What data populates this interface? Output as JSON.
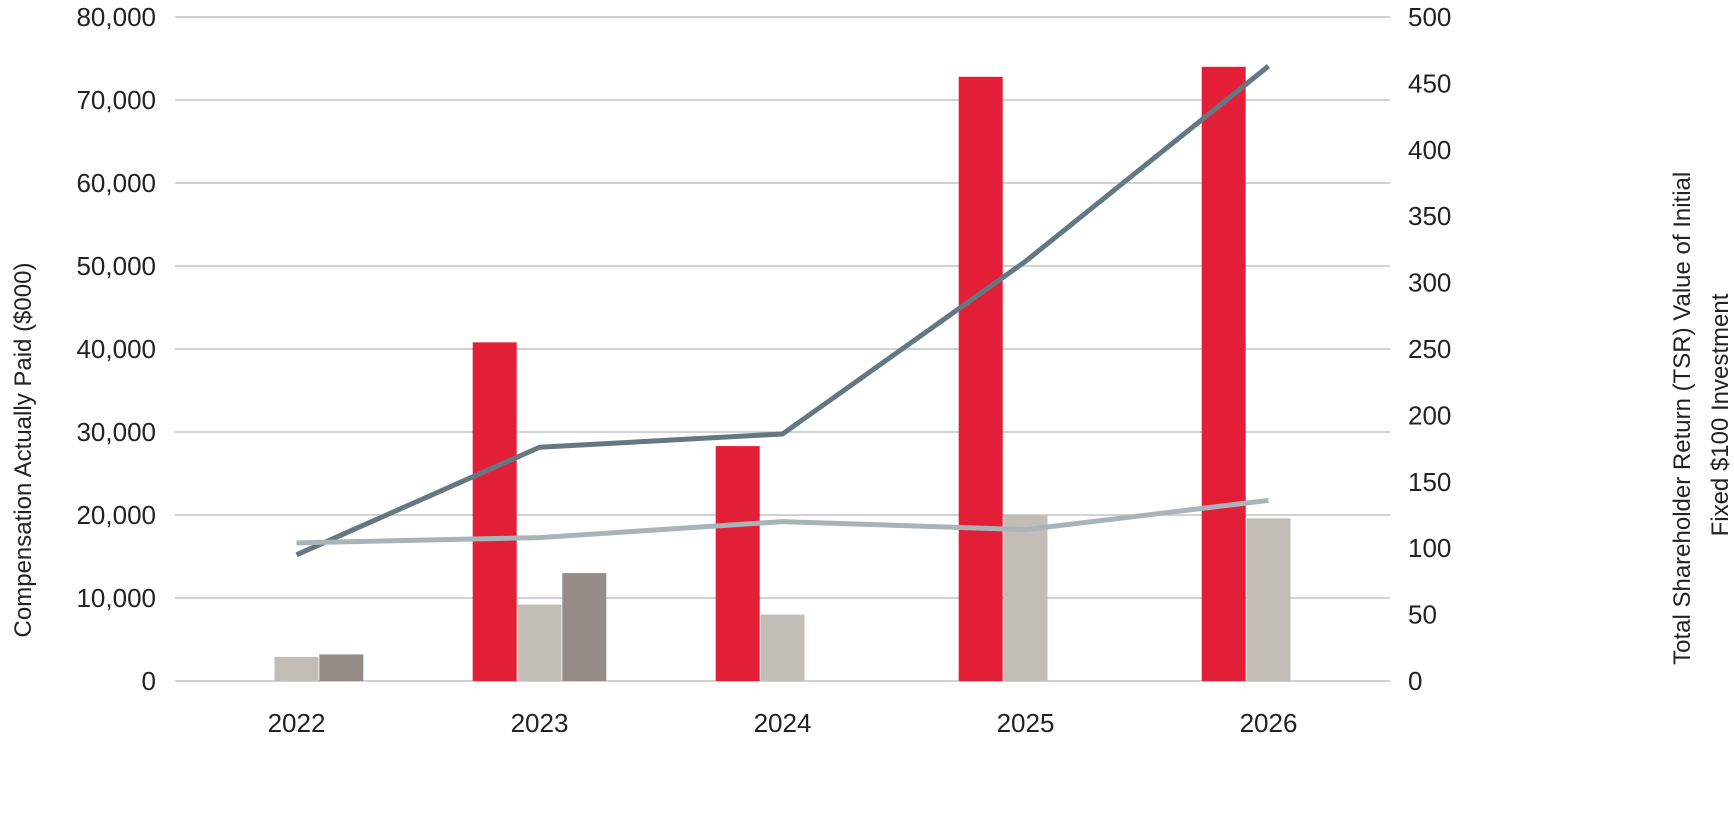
{
  "chart_data": {
    "type": "bar",
    "categories": [
      "2022",
      "2023",
      "2024",
      "2025",
      "2026"
    ],
    "ylabel": "Compensation Actually Paid ($000)",
    "ylabel_right": [
      "Total Shareholder Return (TSR) Value of Initial",
      "Fixed $100 Investment"
    ],
    "ylim": [
      0,
      80000
    ],
    "ylim_right": [
      0,
      500
    ],
    "yticks": [
      "0",
      "10,000",
      "20,000",
      "30,000",
      "40,000",
      "50,000",
      "60,000",
      "70,000",
      "80,000"
    ],
    "yticks_right": [
      "0",
      "50",
      "100",
      "150",
      "200",
      "250",
      "300",
      "350",
      "400",
      "450",
      "500"
    ],
    "grid": true,
    "bar_series": [
      {
        "color": "#e31f37",
        "values": [
          null,
          40800,
          28300,
          72800,
          74000
        ]
      },
      {
        "color": "#c3bdb8",
        "values": [
          2900,
          9200,
          8000,
          20000,
          19600
        ]
      },
      {
        "color": "#958b87",
        "values": [
          3200,
          13000,
          null,
          null,
          null
        ]
      }
    ],
    "line_series": [
      {
        "color": "#637880",
        "values": [
          95,
          176,
          186,
          316,
          463
        ]
      },
      {
        "color": "#a9b4b9",
        "values": [
          104,
          108,
          120,
          114,
          136
        ]
      }
    ]
  }
}
